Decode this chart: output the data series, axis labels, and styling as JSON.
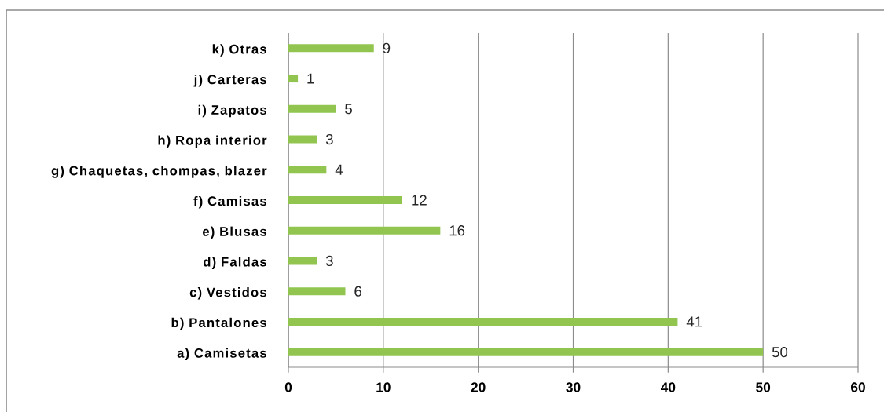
{
  "chart_data": {
    "type": "bar",
    "orientation": "horizontal",
    "categories": [
      "k) Otras",
      "j) Carteras",
      "i) Zapatos",
      "h) Ropa interior",
      "g) Chaquetas, chompas, blazer",
      "f) Camisas",
      "e) Blusas",
      "d) Faldas",
      "c) Vestidos",
      "b) Pantalones",
      "a) Camisetas"
    ],
    "values": [
      9,
      1,
      5,
      3,
      4,
      12,
      16,
      3,
      6,
      41,
      50
    ],
    "color": "#92c550",
    "xlim": [
      0,
      60
    ],
    "xticks": [
      0,
      10,
      20,
      30,
      40,
      50,
      60
    ],
    "grid": "x",
    "data_labels": true
  }
}
